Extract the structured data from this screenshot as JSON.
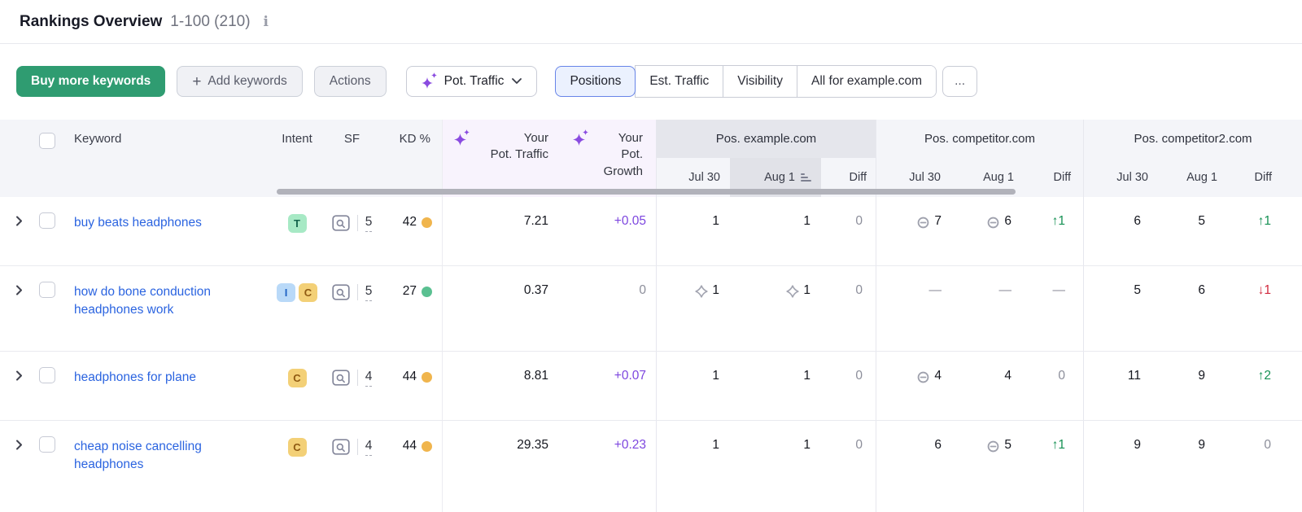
{
  "header": {
    "title": "Rankings Overview",
    "range": "1-100 (210)",
    "info_icon": "i"
  },
  "toolbar": {
    "buy_button": "Buy more keywords",
    "add_button": "Add keywords",
    "plus_icon": "+",
    "actions_button": "Actions",
    "metric_dropdown": "Pot. Traffic",
    "tabs": [
      {
        "label": "Positions",
        "selected": true
      },
      {
        "label": "Est. Traffic",
        "selected": false
      },
      {
        "label": "Visibility",
        "selected": false
      },
      {
        "label": "All for example.com",
        "selected": false
      }
    ],
    "more_tabs": "..."
  },
  "table": {
    "columns": {
      "keyword": "Keyword",
      "intent": "Intent",
      "serp_features": "SF",
      "kd": "KD %",
      "pot_traffic_line1": "Your",
      "pot_traffic_line2": "Pot. Traffic",
      "pot_growth_line1": "Your",
      "pot_growth_line2": "Pot. Growth"
    },
    "groups": [
      {
        "label": "Pos. example.com",
        "subcols": [
          "Jul 30",
          "Aug 1",
          "Diff"
        ],
        "sorted_subcol": "Aug 1"
      },
      {
        "label": "Pos. competitor.com",
        "subcols": [
          "Jul 30",
          "Aug 1",
          "Diff"
        ]
      },
      {
        "label": "Pos. competitor2.com",
        "subcols": [
          "Jul 30",
          "Aug 1",
          "Diff"
        ]
      }
    ],
    "rows": [
      {
        "keyword": "buy beats headphones",
        "intents": [
          {
            "label": "T",
            "kind": "transactional"
          }
        ],
        "sf": "5",
        "kd": "42",
        "kd_level": "possible",
        "pot_traffic": "7.21",
        "pot_growth": "+0.05",
        "pot_growth_style": "purple",
        "cells": [
          {
            "v": "1"
          },
          {
            "v": "1"
          },
          {
            "v": "0",
            "muted": true
          },
          {
            "v": "7",
            "icon": "link"
          },
          {
            "v": "6",
            "icon": "link"
          },
          {
            "v": "1",
            "dir": "up"
          },
          {
            "v": "6"
          },
          {
            "v": "5"
          },
          {
            "v": "1",
            "dir": "up"
          }
        ]
      },
      {
        "keyword": "how do bone conduction headphones work",
        "intents": [
          {
            "label": "I",
            "kind": "informational"
          },
          {
            "label": "C",
            "kind": "commercial"
          }
        ],
        "sf": "5",
        "kd": "27",
        "kd_level": "easy",
        "pot_traffic": "0.37",
        "pot_growth": "0",
        "pot_growth_style": "muted",
        "cells": [
          {
            "v": "1",
            "icon": "snippet"
          },
          {
            "v": "1",
            "icon": "snippet"
          },
          {
            "v": "0",
            "muted": true
          },
          {
            "v": "—",
            "muted": true
          },
          {
            "v": "—",
            "muted": true
          },
          {
            "v": "—",
            "muted": true
          },
          {
            "v": "5"
          },
          {
            "v": "6"
          },
          {
            "v": "1",
            "dir": "down"
          }
        ]
      },
      {
        "keyword": "headphones for plane",
        "intents": [
          {
            "label": "C",
            "kind": "commercial"
          }
        ],
        "sf": "4",
        "kd": "44",
        "kd_level": "possible",
        "pot_traffic": "8.81",
        "pot_growth": "+0.07",
        "pot_growth_style": "purple",
        "cells": [
          {
            "v": "1"
          },
          {
            "v": "1"
          },
          {
            "v": "0",
            "muted": true
          },
          {
            "v": "4",
            "icon": "link"
          },
          {
            "v": "4"
          },
          {
            "v": "0",
            "muted": true
          },
          {
            "v": "11"
          },
          {
            "v": "9"
          },
          {
            "v": "2",
            "dir": "up"
          }
        ]
      },
      {
        "keyword": "cheap noise cancelling headphones",
        "intents": [
          {
            "label": "C",
            "kind": "commercial"
          }
        ],
        "sf": "4",
        "kd": "44",
        "kd_level": "possible",
        "pot_traffic": "29.35",
        "pot_growth": "+0.23",
        "pot_growth_style": "purple",
        "cells": [
          {
            "v": "1"
          },
          {
            "v": "1"
          },
          {
            "v": "0",
            "muted": true
          },
          {
            "v": "6"
          },
          {
            "v": "5",
            "icon": "link"
          },
          {
            "v": "1",
            "dir": "up"
          },
          {
            "v": "9"
          },
          {
            "v": "9"
          },
          {
            "v": "0",
            "muted": true
          }
        ]
      }
    ]
  },
  "colors": {
    "brand_green": "#2f9c71",
    "link_blue": "#2b64e0",
    "purple": "#7d46df",
    "sparkle_purple": "#8a4be0",
    "diff_up": "#169154",
    "diff_down": "#d1293d",
    "kd_possible": "#f0b54d",
    "kd_easy": "#5ac091",
    "intent_t_bg": "#a7e9c5",
    "intent_t_fg": "#14644c",
    "intent_i_bg": "#b9d9f8",
    "intent_i_fg": "#1f62c4",
    "intent_c_bg": "#f3d077",
    "intent_c_fg": "#8f5a12",
    "header_bg": "#f4f5f9",
    "group_header_bg": "#e5e6ec",
    "sorted_col_bg": "#e1e2e8",
    "purple_header_bg": "#f8f3fd",
    "selected_tab_bg": "#ebf1fe",
    "selected_tab_border": "#6784e8"
  }
}
